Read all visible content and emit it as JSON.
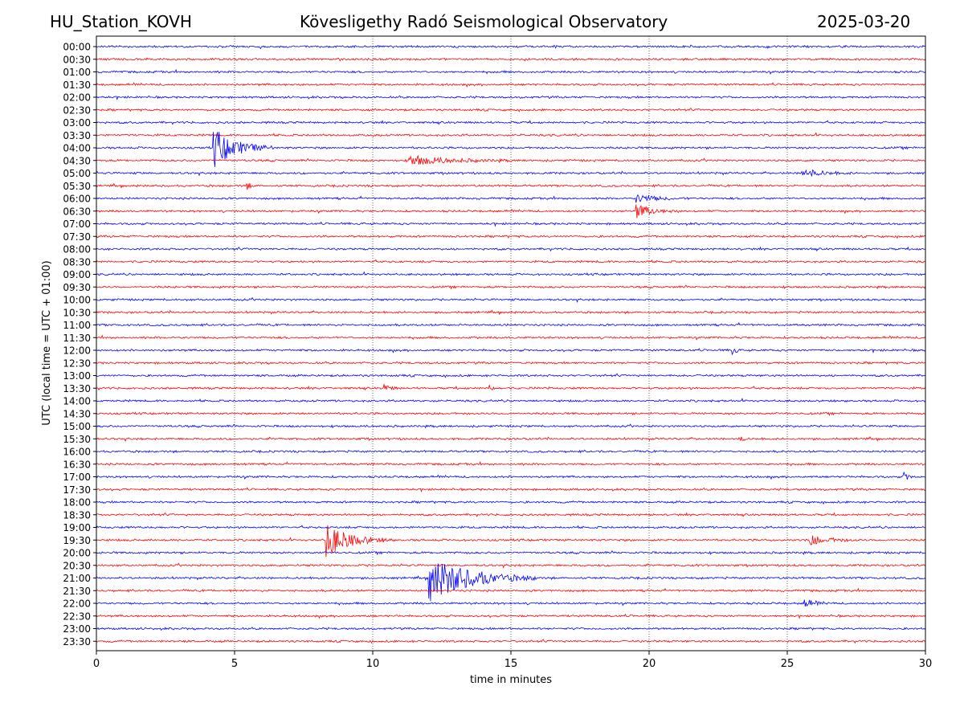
{
  "header": {
    "station": "HU_Station_KOVH",
    "observatory": "Kövesligethy Radó Seismological Observatory",
    "date": "2025-03-20"
  },
  "chart_data": {
    "type": "line",
    "title": "Kövesligethy Radó Seismological Observatory",
    "xlabel": "time in minutes",
    "ylabel": "UTC (local time = UTC + 01:00)",
    "xlim": [
      0,
      30
    ],
    "x_ticks": [
      0,
      5,
      10,
      15,
      20,
      25,
      30
    ],
    "grid": "vertical dotted at 5-minute intervals",
    "row_labels": [
      "00:00",
      "00:30",
      "01:00",
      "01:30",
      "02:00",
      "02:30",
      "03:00",
      "03:30",
      "04:00",
      "04:30",
      "05:00",
      "05:30",
      "06:00",
      "06:30",
      "07:00",
      "07:30",
      "08:00",
      "08:30",
      "09:00",
      "09:30",
      "10:00",
      "10:30",
      "11:00",
      "11:30",
      "12:00",
      "12:30",
      "13:00",
      "13:30",
      "14:00",
      "14:30",
      "15:00",
      "15:30",
      "16:00",
      "16:30",
      "17:00",
      "17:30",
      "18:00",
      "18:30",
      "19:00",
      "19:30",
      "20:00",
      "20:30",
      "21:00",
      "21:30",
      "22:00",
      "22:30",
      "23:00",
      "23:30"
    ],
    "trace_colors": [
      "#0000ff",
      "#ff0000"
    ],
    "events": [
      {
        "row": "04:00",
        "minute": 4.2,
        "amplitude": 1.0,
        "duration": 2.2
      },
      {
        "row": "04:30",
        "minute": 11.3,
        "amplitude": 0.25,
        "duration": 3.8
      },
      {
        "row": "05:00",
        "minute": 25.5,
        "amplitude": 0.2,
        "duration": 2.0
      },
      {
        "row": "05:30",
        "minute": 5.4,
        "amplitude": 0.25,
        "duration": 0.4
      },
      {
        "row": "06:00",
        "minute": 19.5,
        "amplitude": 0.2,
        "duration": 2.0
      },
      {
        "row": "06:30",
        "minute": 19.5,
        "amplitude": 0.35,
        "duration": 1.6
      },
      {
        "row": "12:00",
        "minute": 23.0,
        "amplitude": 0.3,
        "duration": 0.3
      },
      {
        "row": "13:30",
        "minute": 10.4,
        "amplitude": 0.25,
        "duration": 0.5
      },
      {
        "row": "13:30",
        "minute": 14.2,
        "amplitude": 0.25,
        "duration": 0.4
      },
      {
        "row": "15:30",
        "minute": 23.3,
        "amplitude": 0.25,
        "duration": 0.3
      },
      {
        "row": "17:00",
        "minute": 29.2,
        "amplitude": 0.3,
        "duration": 0.4
      },
      {
        "row": "19:30",
        "minute": 8.3,
        "amplitude": 0.8,
        "duration": 2.4
      },
      {
        "row": "19:30",
        "minute": 25.8,
        "amplitude": 0.25,
        "duration": 1.8
      },
      {
        "row": "21:00",
        "minute": 12.0,
        "amplitude": 1.15,
        "duration": 4.0
      },
      {
        "row": "22:00",
        "minute": 25.6,
        "amplitude": 0.2,
        "duration": 1.0
      }
    ]
  }
}
